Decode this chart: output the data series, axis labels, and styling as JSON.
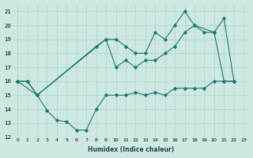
{
  "xlabel": "Humidex (Indice chaleur)",
  "ylabel": "",
  "bg_color": "#cde8e2",
  "line_color": "#1a7a6e",
  "grid_color": "#aecfc9",
  "xlim": [
    -0.5,
    23.5
  ],
  "ylim": [
    12,
    21.5
  ],
  "xticks": [
    0,
    1,
    2,
    3,
    4,
    5,
    6,
    7,
    8,
    9,
    10,
    11,
    12,
    13,
    14,
    15,
    16,
    17,
    18,
    19,
    20,
    21,
    22,
    23
  ],
  "yticks": [
    12,
    13,
    14,
    15,
    16,
    17,
    18,
    19,
    20,
    21
  ],
  "series": [
    {
      "x": [
        0,
        1,
        2,
        9,
        10,
        11,
        12,
        13,
        14,
        15,
        16,
        17,
        18,
        19,
        20,
        21,
        22
      ],
      "y": [
        16.0,
        16.0,
        15.0,
        19.0,
        19.0,
        18.5,
        18.0,
        18.0,
        19.5,
        19.0,
        20.0,
        21.0,
        20.0,
        19.5,
        19.5,
        16.0,
        16.0
      ]
    },
    {
      "x": [
        0,
        1,
        2,
        3,
        4,
        5,
        6,
        7,
        8,
        9,
        10,
        11,
        12,
        13,
        14,
        15,
        16,
        17,
        18,
        19,
        20,
        21,
        22
      ],
      "y": [
        16.0,
        16.0,
        15.0,
        13.9,
        13.2,
        13.1,
        12.5,
        12.5,
        14.0,
        15.0,
        15.0,
        15.0,
        15.2,
        15.0,
        15.2,
        15.0,
        15.5,
        15.5,
        15.5,
        15.5,
        16.0,
        16.0,
        16.0
      ]
    },
    {
      "x": [
        0,
        2,
        8,
        9,
        10,
        11,
        12,
        13,
        14,
        15,
        16,
        17,
        18,
        20,
        21,
        22
      ],
      "y": [
        16.0,
        15.0,
        18.5,
        19.0,
        17.0,
        17.5,
        17.0,
        17.5,
        17.5,
        18.0,
        18.5,
        19.5,
        20.0,
        19.5,
        20.5,
        16.0
      ]
    }
  ]
}
